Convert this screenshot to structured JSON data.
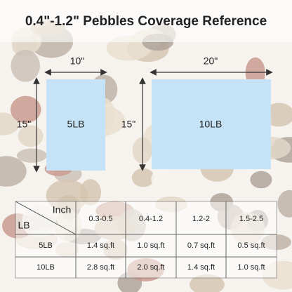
{
  "title": "0.4\"-1.2\" Pebbles Coverage Reference",
  "diagram": {
    "small": {
      "width": "10\"",
      "height": "15\"",
      "weight": "5LB"
    },
    "large": {
      "width": "20\"",
      "height": "15\"",
      "weight": "10LB"
    }
  },
  "table": {
    "corner": {
      "top": "Inch",
      "bottom": "LB"
    },
    "columns": [
      "0.3-0.5",
      "0.4-1.2",
      "1.2-2",
      "1.5-2.5"
    ],
    "rows": [
      [
        "5LB",
        "1.4 sq.ft",
        "1.0 sq.ft",
        "0.7 sq.ft",
        "0.5 sq.ft"
      ],
      [
        "10LB",
        "2.8 sq.ft",
        "2.0 sq.ft",
        "1.4 sq.ft",
        "1.0 sq.ft"
      ]
    ]
  }
}
